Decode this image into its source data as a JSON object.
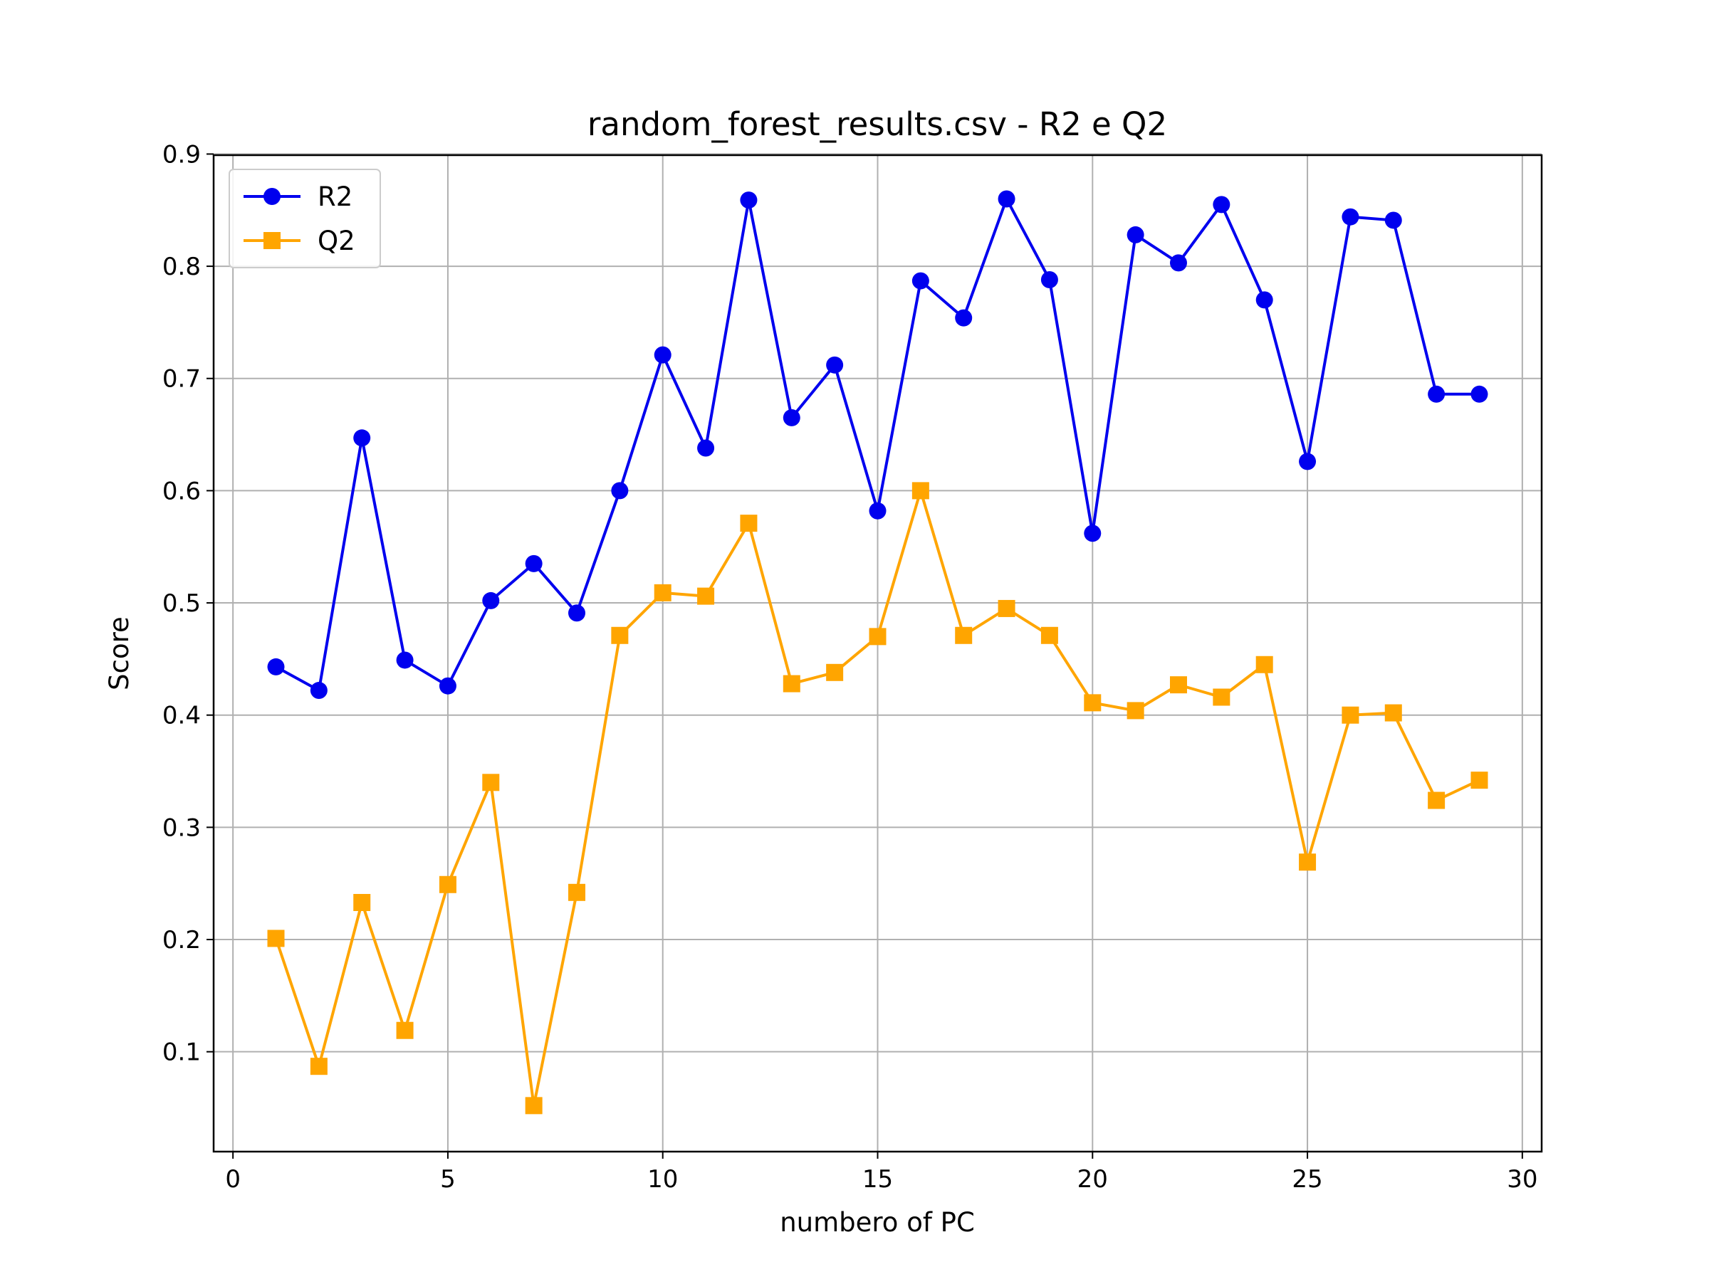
{
  "chart_data": {
    "type": "line",
    "title": "random_forest_results.csv - R2 e Q2",
    "xlabel": "numbero of PC",
    "ylabel": "Score",
    "xlim": [
      -0.45,
      30.45
    ],
    "ylim": [
      0.011,
      0.899
    ],
    "xticks": [
      0,
      5,
      10,
      15,
      20,
      25,
      30
    ],
    "yticks": [
      0.1,
      0.2,
      0.3,
      0.4,
      0.5,
      0.6,
      0.7,
      0.8,
      0.9
    ],
    "xtick_labels": [
      "0",
      "5",
      "10",
      "15",
      "20",
      "25",
      "30"
    ],
    "ytick_labels": [
      "0.1",
      "0.2",
      "0.3",
      "0.4",
      "0.5",
      "0.6",
      "0.7",
      "0.8",
      "0.9"
    ],
    "grid": true,
    "legend_position": "upper-left",
    "x": [
      1,
      2,
      3,
      4,
      5,
      6,
      7,
      8,
      9,
      10,
      11,
      12,
      13,
      14,
      15,
      16,
      17,
      18,
      19,
      20,
      21,
      22,
      23,
      24,
      25,
      26,
      27,
      28,
      29
    ],
    "series": [
      {
        "name": "R2",
        "color": "#0000ee",
        "marker": "circle",
        "values": [
          0.443,
          0.422,
          0.647,
          0.449,
          0.426,
          0.502,
          0.535,
          0.491,
          0.6,
          0.721,
          0.638,
          0.859,
          0.665,
          0.712,
          0.582,
          0.787,
          0.754,
          0.86,
          0.788,
          0.562,
          0.828,
          0.803,
          0.855,
          0.77,
          0.626,
          0.844,
          0.841,
          0.686,
          0.686
        ]
      },
      {
        "name": "Q2",
        "color": "#ffa500",
        "marker": "square",
        "values": [
          0.201,
          0.087,
          0.233,
          0.119,
          0.249,
          0.34,
          0.052,
          0.242,
          0.471,
          0.509,
          0.506,
          0.571,
          0.428,
          0.438,
          0.47,
          0.6,
          0.471,
          0.495,
          0.471,
          0.411,
          0.404,
          0.427,
          0.416,
          0.445,
          0.269,
          0.4,
          0.402,
          0.324,
          0.342
        ]
      }
    ]
  }
}
